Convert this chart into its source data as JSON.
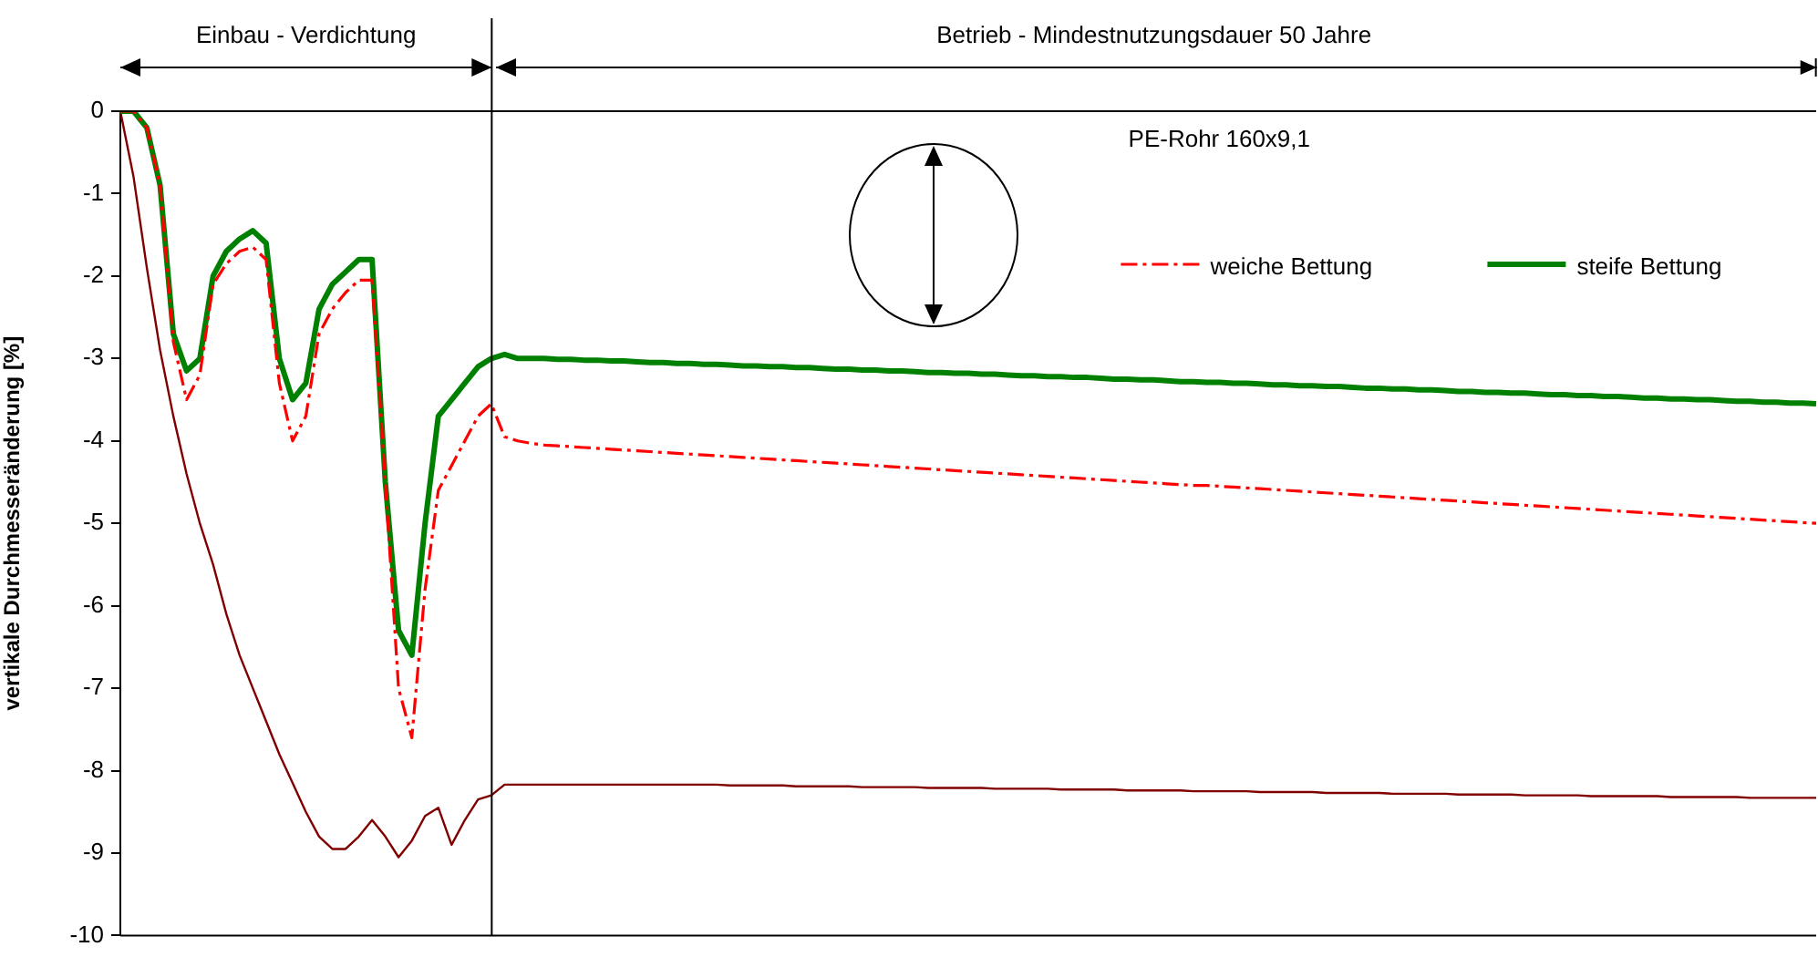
{
  "chart_data": {
    "type": "line",
    "ylabel": "vertikale Durchmesseränderung [%]",
    "annotations": [
      "Einbau - Verdichtung",
      "Betrieb - Mindestnutzungsdauer 50 Jahre",
      "PE-Rohr 160x9,1"
    ],
    "categories": [
      null,
      null,
      null,
      null,
      null,
      null,
      null,
      null,
      null,
      null,
      null,
      null,
      null,
      null,
      null,
      null,
      null,
      null,
      null,
      null,
      null,
      null,
      null,
      null,
      null,
      null,
      null,
      null,
      null,
      null,
      null,
      null,
      null,
      null,
      null,
      null,
      null,
      null,
      null,
      null,
      null,
      null,
      null,
      null,
      null,
      null,
      null,
      null,
      null,
      null,
      null,
      null,
      null,
      null,
      null,
      null,
      null,
      null,
      null,
      null,
      null,
      null,
      null,
      null,
      null,
      null,
      null,
      null,
      null,
      null,
      null,
      null,
      null,
      null,
      null,
      null,
      null,
      null,
      null,
      null,
      null,
      null,
      null,
      null,
      null,
      null,
      null,
      null,
      null,
      null,
      null,
      null,
      null,
      null,
      null,
      null,
      null,
      null,
      null,
      null,
      null,
      null,
      null,
      null,
      null,
      null,
      null,
      null,
      null,
      null,
      null,
      null,
      null,
      null,
      null,
      null,
      null,
      null,
      null,
      null,
      null,
      null,
      null,
      null,
      null,
      null,
      null,
      null,
      null
    ],
    "series": [
      {
        "name": "weiche Bettung",
        "color": "#ff0000",
        "line_style": "dashed",
        "values": [
          0,
          0,
          -0.2,
          -0.9,
          -2.8,
          -3.5,
          -3.2,
          -2.1,
          -1.85,
          -1.7,
          -1.65,
          -1.8,
          -3.3,
          -4.0,
          -3.7,
          -2.7,
          -2.4,
          -2.2,
          -2.05,
          -2.05,
          -4.5,
          -7.0,
          -7.6,
          -5.8,
          -4.6,
          -4.3,
          -4.0,
          -3.7,
          -3.55,
          -3.95,
          -4.0,
          -4.03,
          -4.05,
          -4.06,
          -4.07,
          -4.08,
          -4.09,
          -4.1,
          -4.11,
          -4.12,
          -4.13,
          -4.14,
          -4.15,
          -4.16,
          -4.17,
          -4.18,
          -4.19,
          -4.2,
          -4.21,
          -4.22,
          -4.23,
          -4.24,
          -4.25,
          -4.26,
          -4.27,
          -4.28,
          -4.29,
          -4.3,
          -4.31,
          -4.32,
          -4.33,
          -4.34,
          -4.35,
          -4.36,
          -4.37,
          -4.38,
          -4.39,
          -4.4,
          -4.41,
          -4.42,
          -4.43,
          -4.44,
          -4.45,
          -4.46,
          -4.47,
          -4.48,
          -4.49,
          -4.5,
          -4.51,
          -4.52,
          -4.53,
          -4.54,
          -4.54,
          -4.55,
          -4.56,
          -4.57,
          -4.58,
          -4.59,
          -4.6,
          -4.61,
          -4.62,
          -4.63,
          -4.64,
          -4.65,
          -4.66,
          -4.67,
          -4.68,
          -4.69,
          -4.7,
          -4.71,
          -4.72,
          -4.73,
          -4.74,
          -4.75,
          -4.76,
          -4.77,
          -4.78,
          -4.79,
          -4.8,
          -4.81,
          -4.82,
          -4.83,
          -4.84,
          -4.85,
          -4.86,
          -4.87,
          -4.88,
          -4.89,
          -4.9,
          -4.91,
          -4.92,
          -4.93,
          -4.94,
          -4.95,
          -4.96,
          -4.97,
          -4.98,
          -4.99,
          -5.0
        ]
      },
      {
        "name": "steife Bettung",
        "color": "#008000",
        "line_style": "solid",
        "values": [
          0,
          0,
          -0.2,
          -0.9,
          -2.7,
          -3.15,
          -3.0,
          -2.0,
          -1.7,
          -1.55,
          -1.45,
          -1.6,
          -3.0,
          -3.5,
          -3.3,
          -2.4,
          -2.1,
          -1.95,
          -1.8,
          -1.8,
          -4.5,
          -6.3,
          -6.6,
          -5.0,
          -3.7,
          -3.5,
          -3.3,
          -3.1,
          -3.0,
          -2.95,
          -3.0,
          -3.0,
          -3.0,
          -3.01,
          -3.01,
          -3.02,
          -3.02,
          -3.03,
          -3.03,
          -3.04,
          -3.05,
          -3.05,
          -3.06,
          -3.06,
          -3.07,
          -3.07,
          -3.08,
          -3.09,
          -3.09,
          -3.1,
          -3.1,
          -3.11,
          -3.11,
          -3.12,
          -3.13,
          -3.13,
          -3.14,
          -3.14,
          -3.15,
          -3.15,
          -3.16,
          -3.17,
          -3.17,
          -3.18,
          -3.18,
          -3.19,
          -3.19,
          -3.2,
          -3.21,
          -3.21,
          -3.22,
          -3.22,
          -3.23,
          -3.23,
          -3.24,
          -3.25,
          -3.25,
          -3.26,
          -3.26,
          -3.27,
          -3.28,
          -3.28,
          -3.29,
          -3.29,
          -3.3,
          -3.3,
          -3.31,
          -3.32,
          -3.32,
          -3.33,
          -3.33,
          -3.34,
          -3.34,
          -3.35,
          -3.36,
          -3.36,
          -3.37,
          -3.37,
          -3.38,
          -3.38,
          -3.39,
          -3.4,
          -3.4,
          -3.41,
          -3.41,
          -3.42,
          -3.42,
          -3.43,
          -3.44,
          -3.44,
          -3.45,
          -3.45,
          -3.46,
          -3.46,
          -3.47,
          -3.48,
          -3.48,
          -3.49,
          -3.49,
          -3.5,
          -3.5,
          -3.51,
          -3.52,
          -3.52,
          -3.53,
          -3.53,
          -3.54,
          -3.54,
          -3.55
        ]
      },
      {
        "color": "#800000",
        "line_style": "solid",
        "values": [
          0,
          -0.8,
          -1.9,
          -2.9,
          -3.7,
          -4.4,
          -5.0,
          -5.5,
          -6.1,
          -6.6,
          -7.0,
          -7.4,
          -7.8,
          -8.15,
          -8.5,
          -8.8,
          -8.95,
          -8.95,
          -8.8,
          -8.6,
          -8.8,
          -9.05,
          -8.85,
          -8.55,
          -8.45,
          -8.9,
          -8.6,
          -8.35,
          -8.3,
          -8.17,
          -8.17,
          -8.17,
          -8.17,
          -8.17,
          -8.17,
          -8.17,
          -8.17,
          -8.17,
          -8.17,
          -8.17,
          -8.17,
          -8.17,
          -8.17,
          -8.17,
          -8.17,
          -8.17,
          -8.18,
          -8.18,
          -8.18,
          -8.18,
          -8.18,
          -8.19,
          -8.19,
          -8.19,
          -8.19,
          -8.19,
          -8.2,
          -8.2,
          -8.2,
          -8.2,
          -8.2,
          -8.21,
          -8.21,
          -8.21,
          -8.21,
          -8.21,
          -8.22,
          -8.22,
          -8.22,
          -8.22,
          -8.22,
          -8.23,
          -8.23,
          -8.23,
          -8.23,
          -8.23,
          -8.24,
          -8.24,
          -8.24,
          -8.24,
          -8.24,
          -8.25,
          -8.25,
          -8.25,
          -8.25,
          -8.25,
          -8.26,
          -8.26,
          -8.26,
          -8.26,
          -8.26,
          -8.27,
          -8.27,
          -8.27,
          -8.27,
          -8.27,
          -8.28,
          -8.28,
          -8.28,
          -8.28,
          -8.28,
          -8.29,
          -8.29,
          -8.29,
          -8.29,
          -8.29,
          -8.3,
          -8.3,
          -8.3,
          -8.3,
          -8.3,
          -8.31,
          -8.31,
          -8.31,
          -8.31,
          -8.31,
          -8.31,
          -8.32,
          -8.32,
          -8.32,
          -8.32,
          -8.32,
          -8.32,
          -8.33,
          -8.33,
          -8.33,
          -8.33,
          -8.33,
          -8.33
        ]
      }
    ],
    "ylim": [
      -10,
      0
    ],
    "yticks": [
      0,
      -1,
      -2,
      -3,
      -4,
      -5,
      -6,
      -7,
      -8,
      -9,
      -10
    ],
    "grid": false,
    "legend": "top right",
    "marker": "none",
    "tick_labels": "y"
  }
}
